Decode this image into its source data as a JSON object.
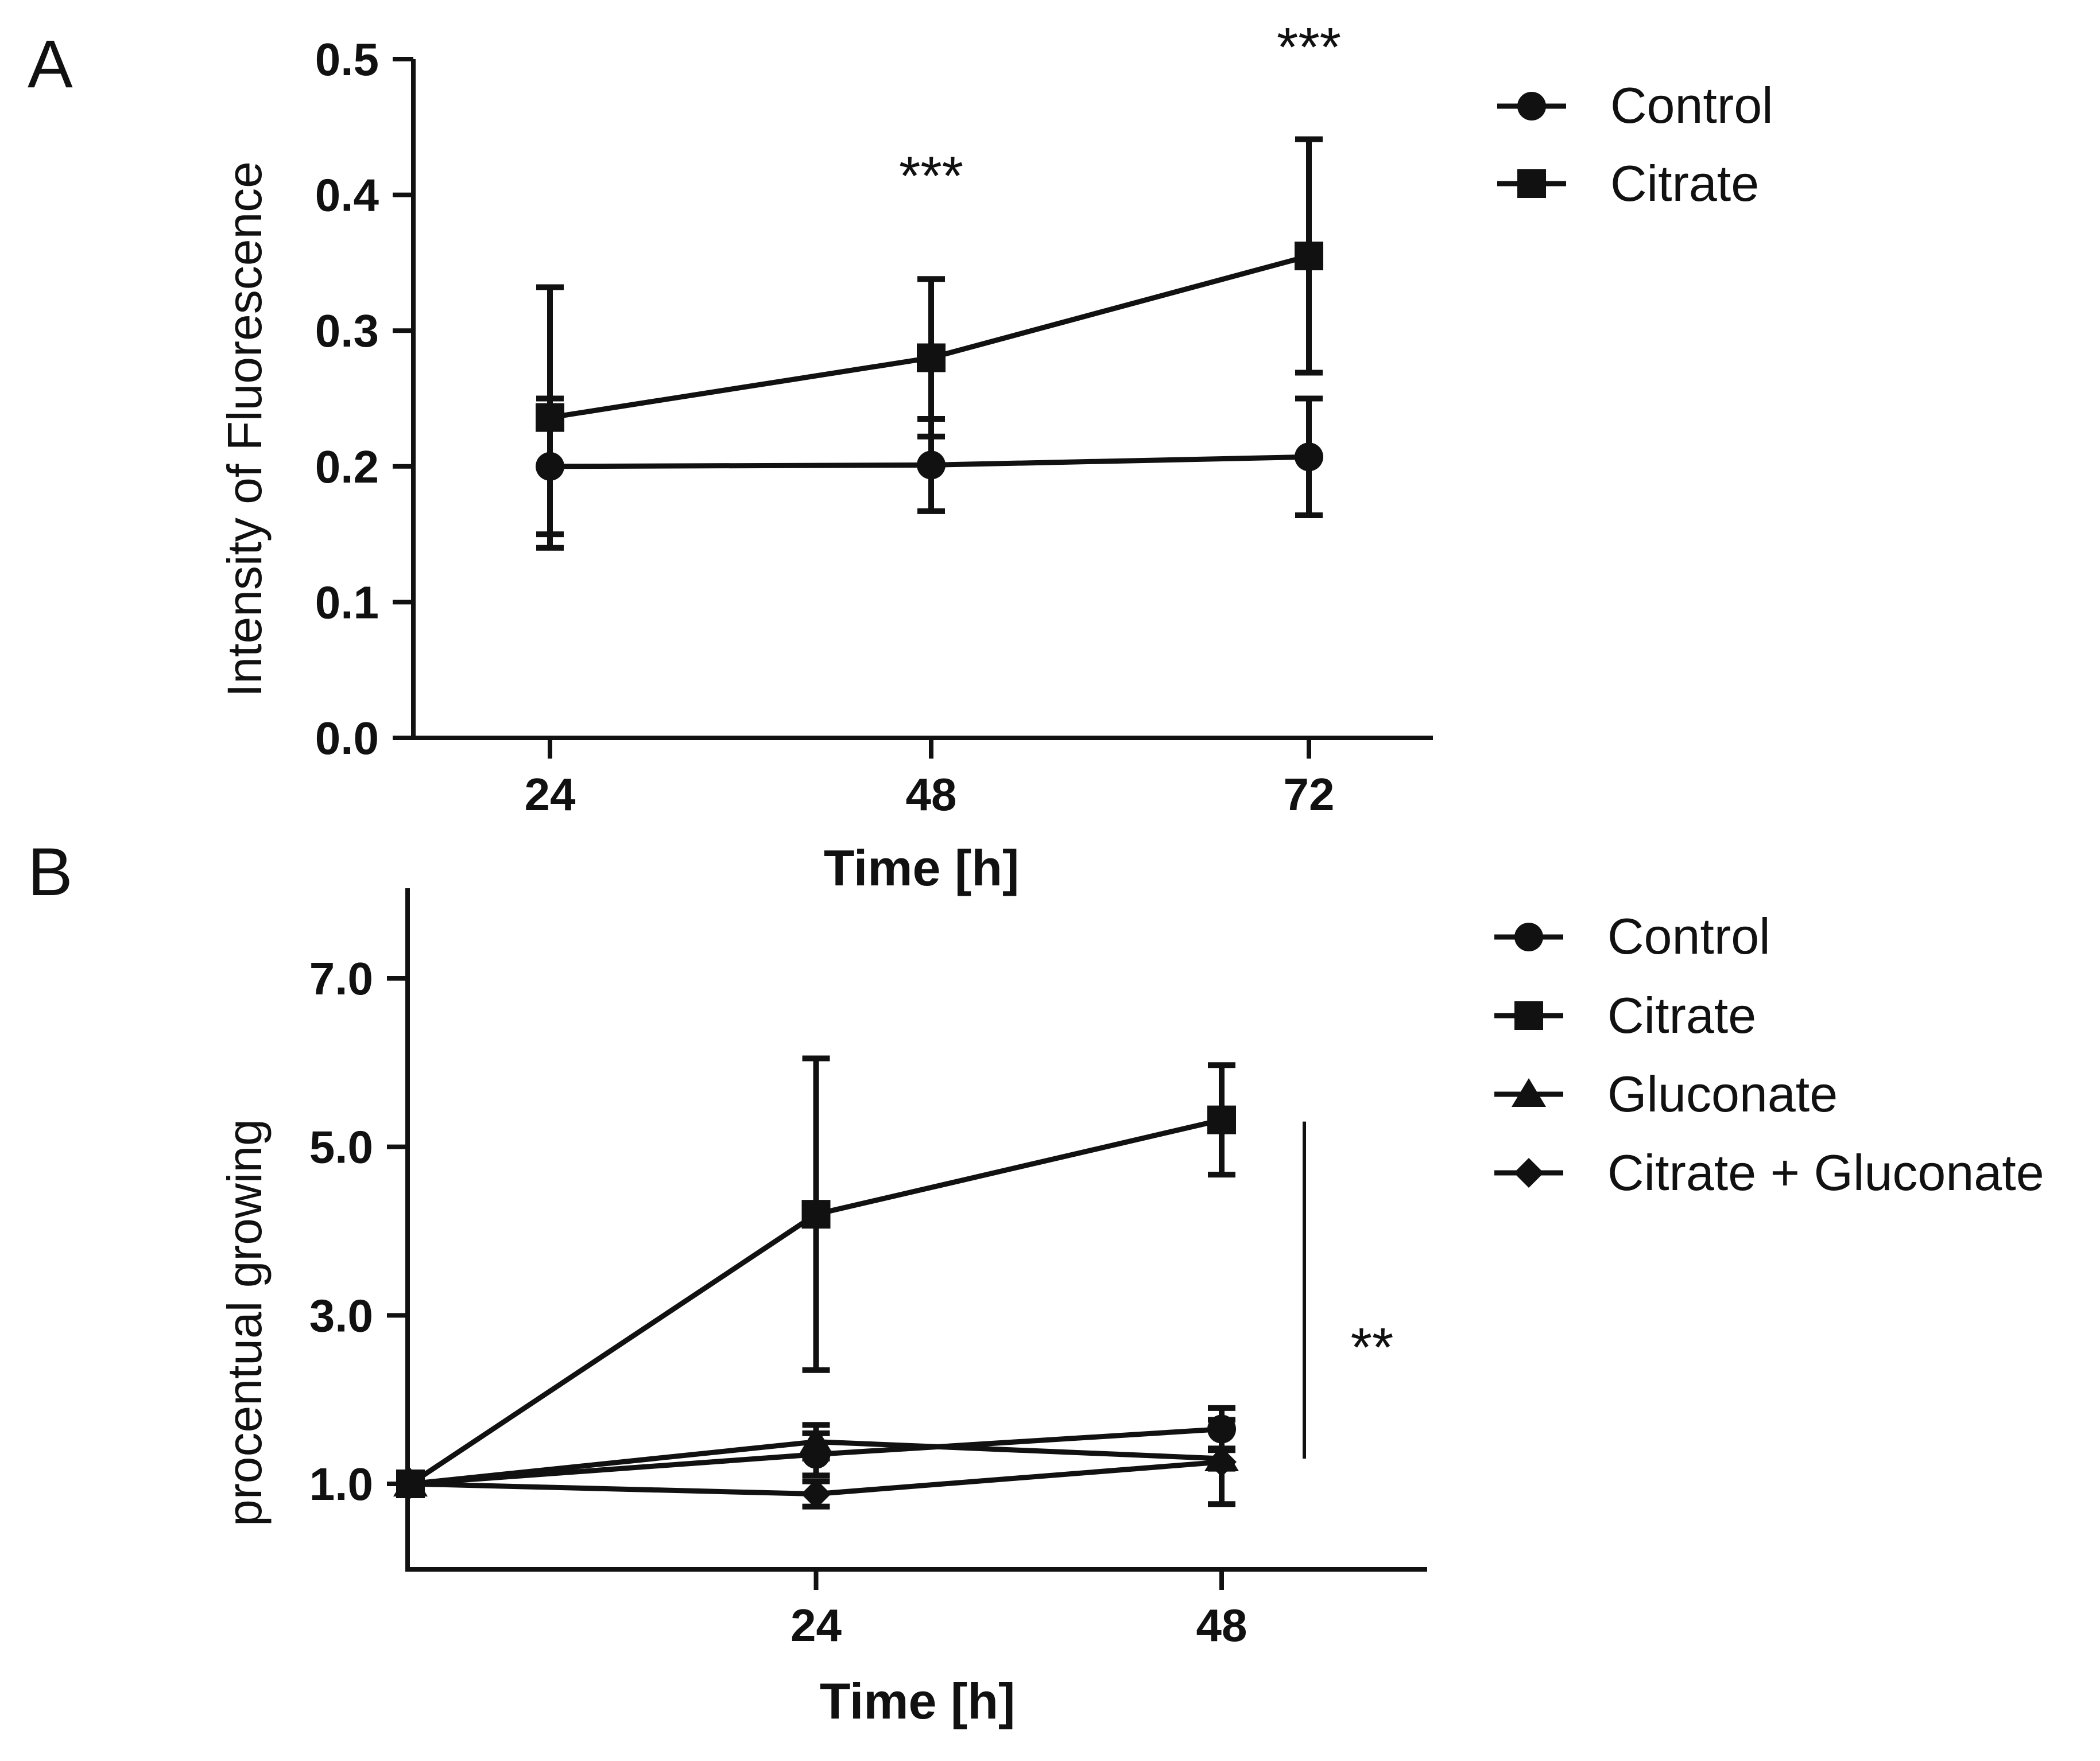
{
  "chart_data": [
    {
      "panel": "A",
      "type": "line",
      "xlabel": "Time [h]",
      "ylabel": "Intensity of Fluorescence",
      "categories": [
        "24",
        "48",
        "72"
      ],
      "ylim": [
        0,
        0.5
      ],
      "yticks": [
        "0.0",
        "0.1",
        "0.2",
        "0.3",
        "0.4",
        "0.5"
      ],
      "series": [
        {
          "name": "Control",
          "marker": "circle",
          "values": [
            0.2,
            0.201,
            0.207
          ],
          "err": [
            0.05,
            0.034,
            0.043
          ]
        },
        {
          "name": "Citrate",
          "marker": "square",
          "values": [
            0.236,
            0.28,
            0.355
          ],
          "err": [
            0.096,
            0.058,
            0.086
          ]
        }
      ],
      "annotations": [
        {
          "text": "***",
          "category": "48",
          "y": 0.4
        },
        {
          "text": "***",
          "category": "72",
          "y": 0.495
        }
      ]
    },
    {
      "panel": "B",
      "type": "line",
      "xlabel": "Time [h]",
      "ylabel": "procentual growing",
      "x": [
        0,
        24,
        48
      ],
      "xticks": [
        "24",
        "48"
      ],
      "ylim": [
        0,
        8
      ],
      "yticks": [
        "1.0",
        "3.0",
        "5.0",
        "7.0"
      ],
      "series": [
        {
          "name": "Control",
          "marker": "circle",
          "values": [
            1.0,
            1.35,
            1.65
          ],
          "err": [
            0,
            0.25,
            0.25
          ]
        },
        {
          "name": "Citrate",
          "marker": "square",
          "values": [
            1.0,
            4.2,
            5.32
          ],
          "err": [
            0,
            1.85,
            0.65
          ]
        },
        {
          "name": "Gluconate",
          "marker": "triangle",
          "values": [
            1.0,
            1.5,
            1.3
          ],
          "err": [
            0,
            0.2,
            0.12
          ]
        },
        {
          "name": "Citrate + Gluconate",
          "marker": "diamond",
          "values": [
            1.0,
            0.88,
            1.26
          ],
          "err": [
            0,
            0.15,
            0.5
          ]
        }
      ],
      "annotations": [
        {
          "text": "**",
          "y": 2.6
        }
      ],
      "bracket_range": [
        1.3,
        5.3
      ]
    }
  ]
}
